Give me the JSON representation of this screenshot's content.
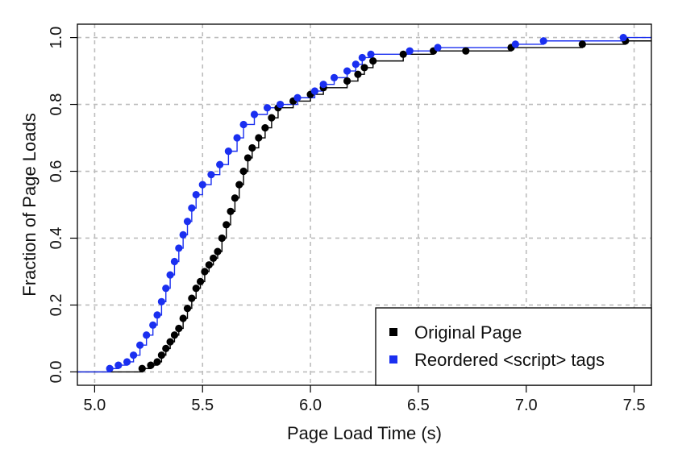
{
  "chart_data": {
    "type": "scatter",
    "plot_kind": "empirical CDF (step lines with point markers)",
    "title": "",
    "xlabel": "Page Load Time (s)",
    "ylabel": "Fraction of Page Loads",
    "xlim": [
      4.92,
      7.58
    ],
    "ylim": [
      -0.04,
      1.04
    ],
    "x_ticks": [
      "5.0",
      "5.5",
      "6.0",
      "6.5",
      "7.0",
      "7.5"
    ],
    "y_ticks": [
      "0.0",
      "0.2",
      "0.4",
      "0.6",
      "0.8",
      "1.0"
    ],
    "grid": true,
    "legend_position": "bottom-right",
    "series": [
      {
        "name": "Original Page",
        "color": "#000000",
        "points": [
          [
            5.22,
            0.01
          ],
          [
            5.26,
            0.02
          ],
          [
            5.29,
            0.03
          ],
          [
            5.31,
            0.05
          ],
          [
            5.33,
            0.07
          ],
          [
            5.35,
            0.09
          ],
          [
            5.37,
            0.11
          ],
          [
            5.39,
            0.13
          ],
          [
            5.41,
            0.16
          ],
          [
            5.43,
            0.19
          ],
          [
            5.45,
            0.22
          ],
          [
            5.47,
            0.25
          ],
          [
            5.49,
            0.27
          ],
          [
            5.51,
            0.3
          ],
          [
            5.53,
            0.32
          ],
          [
            5.55,
            0.34
          ],
          [
            5.57,
            0.36
          ],
          [
            5.59,
            0.4
          ],
          [
            5.61,
            0.44
          ],
          [
            5.63,
            0.48
          ],
          [
            5.65,
            0.52
          ],
          [
            5.67,
            0.56
          ],
          [
            5.69,
            0.6
          ],
          [
            5.71,
            0.64
          ],
          [
            5.73,
            0.67
          ],
          [
            5.76,
            0.7
          ],
          [
            5.79,
            0.73
          ],
          [
            5.82,
            0.76
          ],
          [
            5.85,
            0.79
          ],
          [
            5.92,
            0.81
          ],
          [
            6.0,
            0.83
          ],
          [
            6.06,
            0.85
          ],
          [
            6.17,
            0.87
          ],
          [
            6.22,
            0.89
          ],
          [
            6.25,
            0.91
          ],
          [
            6.29,
            0.93
          ],
          [
            6.43,
            0.95
          ],
          [
            6.57,
            0.96
          ],
          [
            6.72,
            0.96
          ],
          [
            6.93,
            0.97
          ],
          [
            7.26,
            0.98
          ],
          [
            7.46,
            0.99
          ]
        ]
      },
      {
        "name": "Reordered <script> tags",
        "color": "#1a2ff0",
        "points": [
          [
            5.07,
            0.01
          ],
          [
            5.11,
            0.02
          ],
          [
            5.15,
            0.03
          ],
          [
            5.18,
            0.05
          ],
          [
            5.21,
            0.08
          ],
          [
            5.24,
            0.11
          ],
          [
            5.27,
            0.14
          ],
          [
            5.29,
            0.17
          ],
          [
            5.31,
            0.21
          ],
          [
            5.33,
            0.25
          ],
          [
            5.35,
            0.29
          ],
          [
            5.37,
            0.33
          ],
          [
            5.39,
            0.37
          ],
          [
            5.41,
            0.41
          ],
          [
            5.43,
            0.45
          ],
          [
            5.45,
            0.49
          ],
          [
            5.47,
            0.53
          ],
          [
            5.5,
            0.56
          ],
          [
            5.54,
            0.59
          ],
          [
            5.58,
            0.62
          ],
          [
            5.62,
            0.66
          ],
          [
            5.66,
            0.7
          ],
          [
            5.69,
            0.74
          ],
          [
            5.74,
            0.77
          ],
          [
            5.8,
            0.79
          ],
          [
            5.86,
            0.8
          ],
          [
            5.94,
            0.82
          ],
          [
            6.02,
            0.84
          ],
          [
            6.06,
            0.86
          ],
          [
            6.11,
            0.88
          ],
          [
            6.17,
            0.9
          ],
          [
            6.21,
            0.92
          ],
          [
            6.24,
            0.94
          ],
          [
            6.28,
            0.95
          ],
          [
            6.46,
            0.96
          ],
          [
            6.59,
            0.97
          ],
          [
            6.95,
            0.98
          ],
          [
            7.08,
            0.99
          ],
          [
            7.45,
            1.0
          ]
        ]
      }
    ]
  }
}
